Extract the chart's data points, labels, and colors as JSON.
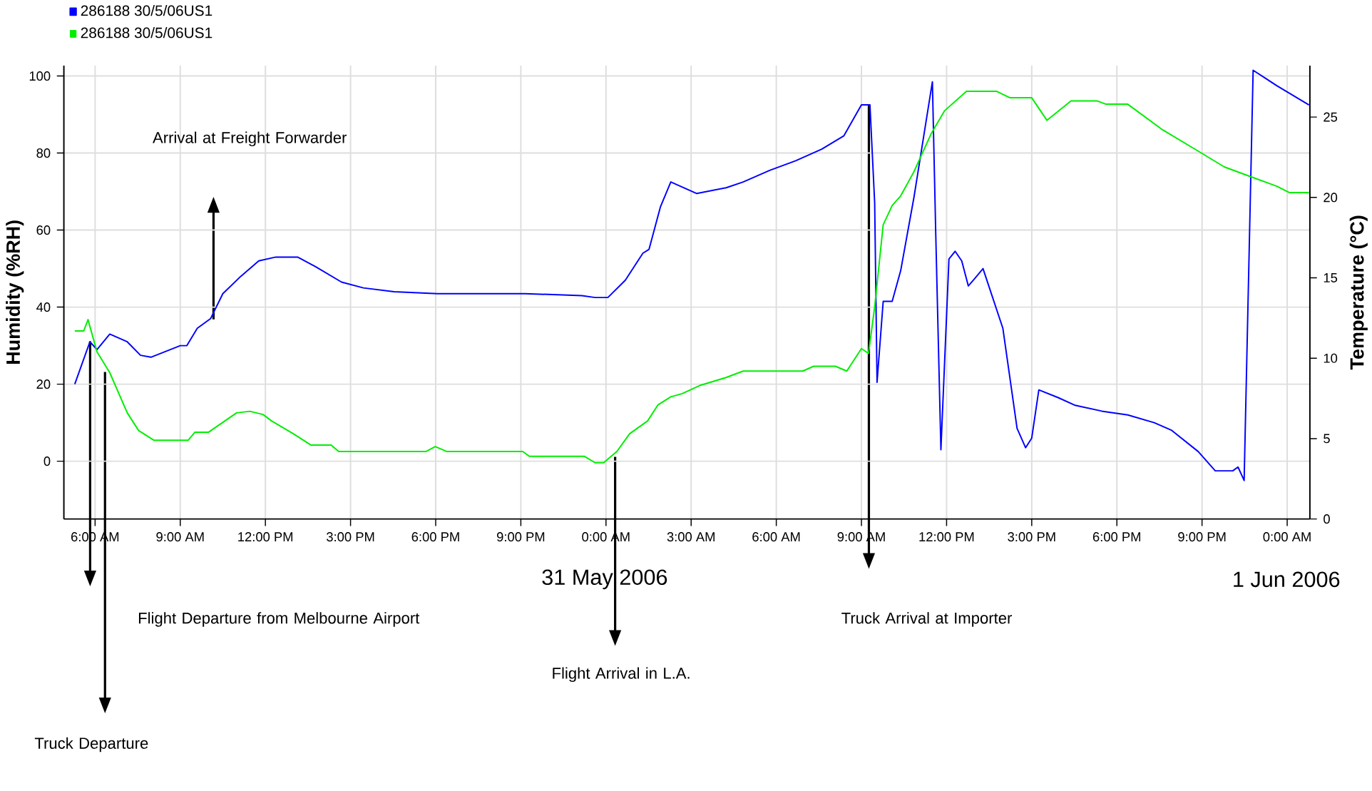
{
  "chart_data": {
    "type": "line",
    "ylabel": "Humidity (%RH)",
    "y2label": "Temperature (°C)",
    "xlim": [
      "2006-05-30T04:54",
      "2006-06-01T00:48"
    ],
    "xticks": [
      {
        "value": "2006-05-30T06:00",
        "label": "6:00 AM"
      },
      {
        "value": "2006-05-30T09:00",
        "label": "9:00 AM"
      },
      {
        "value": "2006-05-30T12:00",
        "label": "12:00 PM"
      },
      {
        "value": "2006-05-30T15:00",
        "label": "3:00 PM"
      },
      {
        "value": "2006-05-30T18:00",
        "label": "6:00 PM"
      },
      {
        "value": "2006-05-30T21:00",
        "label": "9:00 PM"
      },
      {
        "value": "2006-05-31T00:00",
        "label": "0:00 AM"
      },
      {
        "value": "2006-05-31T03:00",
        "label": "3:00 AM"
      },
      {
        "value": "2006-05-31T06:00",
        "label": "6:00 AM"
      },
      {
        "value": "2006-05-31T09:00",
        "label": "9:00 AM"
      },
      {
        "value": "2006-05-31T12:00",
        "label": "12:00 PM"
      },
      {
        "value": "2006-05-31T15:00",
        "label": "3:00 PM"
      },
      {
        "value": "2006-05-31T18:00",
        "label": "6:00 PM"
      },
      {
        "value": "2006-05-31T21:00",
        "label": "9:00 PM"
      },
      {
        "value": "2006-06-01T00:00",
        "label": "0:00 AM"
      }
    ],
    "ylim": [
      -15,
      102.7
    ],
    "yticks": [
      0,
      20,
      40,
      60,
      80,
      100
    ],
    "y2lim": [
      0,
      28.2
    ],
    "y2ticks": [
      0,
      5,
      10,
      15,
      20,
      25
    ],
    "grid": true,
    "legend": "top left",
    "marker": "none",
    "line_style": "solid",
    "series": [
      {
        "name": "286188  30/5/06US1",
        "color": "#0000ff",
        "axis": "y",
        "x": [
          "2006-05-30T05:17",
          "2006-05-30T05:49",
          "2006-05-30T06:04",
          "2006-05-30T06:31",
          "2006-05-30T07:08",
          "2006-05-30T07:36",
          "2006-05-30T07:58",
          "2006-05-30T09:00",
          "2006-05-30T09:14",
          "2006-05-30T09:36",
          "2006-05-30T10:04",
          "2006-05-30T10:30",
          "2006-05-30T11:08",
          "2006-05-30T11:46",
          "2006-05-30T12:22",
          "2006-05-30T13:08",
          "2006-05-30T13:46",
          "2006-05-30T14:41",
          "2006-05-30T15:27",
          "2006-05-30T16:32",
          "2006-05-30T18:04",
          "2006-05-30T19:46",
          "2006-05-30T21:09",
          "2006-05-30T23:09",
          "2006-05-30T23:37",
          "2006-05-31T00:04",
          "2006-05-31T00:41",
          "2006-05-31T01:18",
          "2006-05-31T01:31",
          "2006-05-31T01:55",
          "2006-05-31T02:17",
          "2006-05-31T03:12",
          "2006-05-31T04:14",
          "2006-05-31T04:50",
          "2006-05-31T05:46",
          "2006-05-31T06:41",
          "2006-05-31T07:36",
          "2006-05-31T08:23",
          "2006-05-31T09:00",
          "2006-05-31T09:18",
          "2006-05-31T09:28",
          "2006-05-31T09:33",
          "2006-05-31T09:46",
          "2006-05-31T10:05",
          "2006-05-31T10:23",
          "2006-05-31T10:51",
          "2006-05-31T11:30",
          "2006-05-31T11:37",
          "2006-05-31T11:48",
          "2006-05-31T12:05",
          "2006-05-31T12:18",
          "2006-05-31T12:32",
          "2006-05-31T12:46",
          "2006-05-31T13:00",
          "2006-05-31T13:17",
          "2006-05-31T13:59",
          "2006-05-31T14:29",
          "2006-05-31T14:47",
          "2006-05-31T15:00",
          "2006-05-31T15:15",
          "2006-05-31T15:56",
          "2006-05-31T16:32",
          "2006-05-31T17:28",
          "2006-05-31T18:23",
          "2006-05-31T19:19",
          "2006-05-31T19:56",
          "2006-05-31T20:52",
          "2006-05-31T21:28",
          "2006-05-31T22:05",
          "2006-05-31T22:16",
          "2006-05-31T22:29",
          "2006-05-31T22:48",
          "2006-05-31T23:38",
          "2006-06-01T00:46"
        ],
        "values": [
          20,
          31,
          29,
          33,
          31,
          27.5,
          27,
          30,
          30,
          34.5,
          37,
          43.5,
          48,
          52,
          53,
          53,
          50.5,
          46.5,
          45,
          44,
          43.5,
          43.5,
          43.5,
          43,
          42.5,
          42.5,
          47,
          54,
          55,
          66,
          72.5,
          69.5,
          71,
          72.5,
          75.5,
          78,
          81,
          84.5,
          92.5,
          92.5,
          67,
          20.5,
          41.5,
          41.5,
          49.5,
          68.5,
          98.5,
          59.5,
          3,
          52.5,
          54.5,
          52,
          45.5,
          47.5,
          50,
          34.5,
          8.5,
          3.5,
          6,
          18.5,
          16.5,
          14.5,
          13,
          12,
          10,
          8,
          2.5,
          -2.5,
          -2.5,
          -1.5,
          -5,
          101.5,
          97.5,
          92.5
        ]
      },
      {
        "name": "286188  30/5/06US1",
        "color": "#00ee00",
        "axis": "y2",
        "x": [
          "2006-05-30T05:17",
          "2006-05-30T05:36",
          "2006-05-30T05:45",
          "2006-05-30T06:04",
          "2006-05-30T06:31",
          "2006-05-30T07:08",
          "2006-05-30T07:32",
          "2006-05-30T08:04",
          "2006-05-30T09:17",
          "2006-05-30T09:31",
          "2006-05-30T10:00",
          "2006-05-30T10:59",
          "2006-05-30T11:27",
          "2006-05-30T11:55",
          "2006-05-30T12:13",
          "2006-05-30T12:59",
          "2006-05-30T13:36",
          "2006-05-30T14:19",
          "2006-05-30T14:35",
          "2006-05-30T17:40",
          "2006-05-30T17:59",
          "2006-05-30T18:23",
          "2006-05-30T21:04",
          "2006-05-30T21:18",
          "2006-05-30T23:14",
          "2006-05-30T23:37",
          "2006-05-30T23:55",
          "2006-05-31T00:23",
          "2006-05-31T00:50",
          "2006-05-31T01:28",
          "2006-05-31T01:50",
          "2006-05-31T02:17",
          "2006-05-31T02:41",
          "2006-05-31T03:18",
          "2006-05-31T04:14",
          "2006-05-31T04:50",
          "2006-05-31T06:56",
          "2006-05-31T07:19",
          "2006-05-31T08:05",
          "2006-05-31T08:29",
          "2006-05-31T09:00",
          "2006-05-31T09:15",
          "2006-05-31T09:28",
          "2006-05-31T09:46",
          "2006-05-31T10:05",
          "2006-05-31T10:23",
          "2006-05-31T10:51",
          "2006-05-31T11:28",
          "2006-05-31T11:56",
          "2006-05-31T12:42",
          "2006-05-31T13:46",
          "2006-05-31T14:14",
          "2006-05-31T15:00",
          "2006-05-31T15:32",
          "2006-05-31T16:23",
          "2006-05-31T17:19",
          "2006-05-31T17:37",
          "2006-05-31T18:23",
          "2006-05-31T19:37",
          "2006-05-31T20:51",
          "2006-05-31T21:47",
          "2006-05-31T22:42",
          "2006-05-31T23:38",
          "2006-06-01T00:05",
          "2006-06-01T00:46"
        ],
        "values": [
          11.7,
          11.7,
          12.4,
          10.4,
          9.1,
          6.6,
          5.5,
          4.9,
          4.9,
          5.4,
          5.4,
          6.6,
          6.7,
          6.5,
          6.1,
          5.3,
          4.6,
          4.6,
          4.2,
          4.2,
          4.5,
          4.2,
          4.2,
          3.9,
          3.9,
          3.5,
          3.5,
          4.2,
          5.3,
          6.1,
          7.1,
          7.6,
          7.8,
          8.3,
          8.8,
          9.2,
          9.2,
          9.5,
          9.5,
          9.2,
          10.6,
          10.3,
          13.2,
          18.3,
          19.5,
          20.1,
          21.6,
          24,
          25.4,
          26.6,
          26.6,
          26.2,
          26.2,
          24.8,
          26,
          26,
          25.8,
          25.8,
          24.2,
          22.9,
          21.9,
          21.3,
          20.7,
          20.3,
          20.3
        ]
      }
    ],
    "annotations": [
      "Arrival at Freight Forwarder",
      "Flight Departure from Melbourne Airport",
      "Truck Departure",
      "Flight Arrival in L.A.",
      "Truck Arrival at Importer",
      "31 May 2006",
      "1 Jun 2006"
    ]
  }
}
